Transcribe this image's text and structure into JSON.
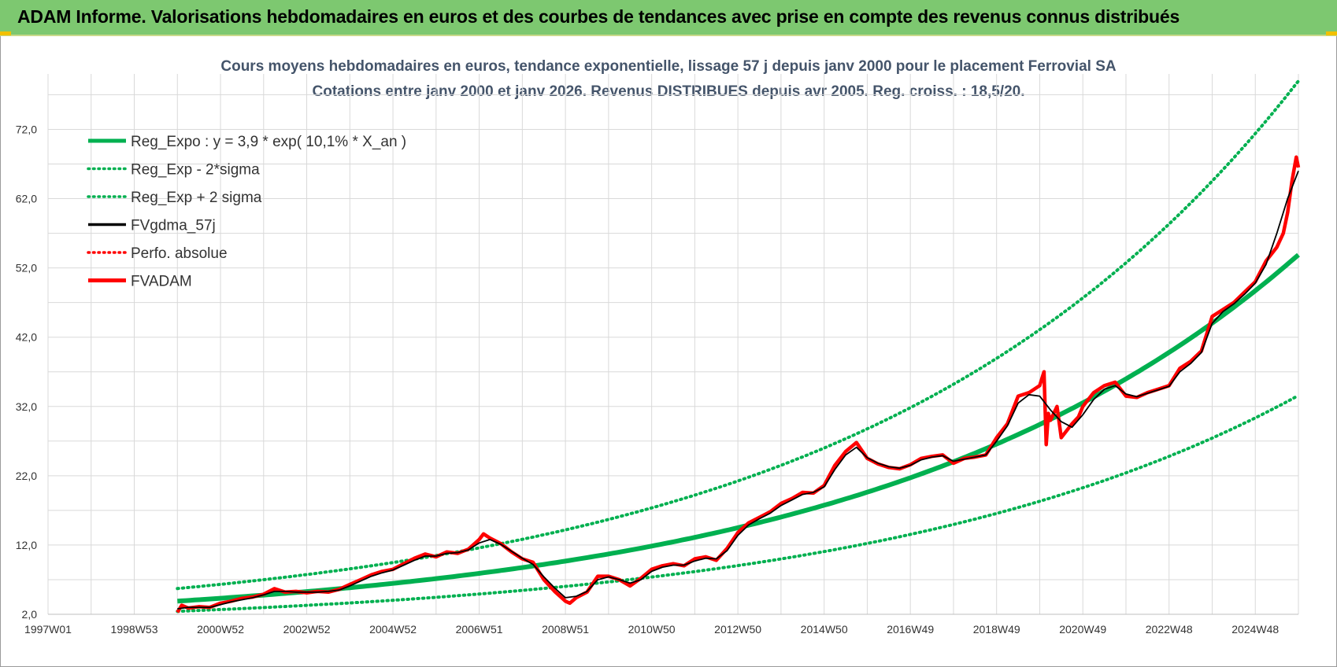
{
  "header": {
    "title": "ADAM Informe. Valorisations hebdomadaires en euros et des courbes de tendances avec prise en compte des revenus connus distribués"
  },
  "colors": {
    "header_bg": "#7dc870",
    "reg_expo": "#00b050",
    "fvgdma": "#000000",
    "perfo": "#ff0000",
    "fvadam": "#ff0000",
    "grid": "#d9d9d9"
  },
  "chart_data": {
    "type": "line",
    "title": "Cours moyens hebdomadaires en euros, tendance exponentielle, lissage 57 j depuis janv 2000  pour le placement Ferrovial SA",
    "subtitle": "Cotations entre janv 2000 et janv 2026. Revenus DISTRIBUES depuis avr 2005.  Reg. croiss. : 18,5/20.",
    "ylim": [
      2,
      80
    ],
    "xlim": [
      1997.0,
      2026.0
    ],
    "y_ticks": [
      "2,0",
      "12,0",
      "22,0",
      "32,0",
      "42,0",
      "52,0",
      "62,0",
      "72,0"
    ],
    "y_tick_values": [
      2,
      12,
      22,
      32,
      42,
      52,
      62,
      72
    ],
    "x_ticks": [
      "1997W01",
      "1998W53",
      "2000W52",
      "2002W52",
      "2004W52",
      "2006W51",
      "2008W51",
      "2010W50",
      "2012W50",
      "2014W50",
      "2016W49",
      "2018W49",
      "2020W49",
      "2022W48",
      "2024W48"
    ],
    "x_tick_values": [
      1997.0,
      1999.0,
      2001.0,
      2003.0,
      2005.0,
      2007.0,
      2009.0,
      2011.0,
      2013.0,
      2015.0,
      2017.0,
      2019.0,
      2021.0,
      2023.0,
      2025.0
    ],
    "grid": true,
    "legend_position": "top-left",
    "legend": [
      {
        "label": "Reg_Expo : y = 3,9 * exp( 10,1% *  X_an )",
        "color": "#00b050",
        "style": "solid-thick"
      },
      {
        "label": "Reg_Exp - 2*sigma",
        "color": "#00b050",
        "style": "dotted"
      },
      {
        "label": "Reg_Exp + 2 sigma",
        "color": "#00b050",
        "style": "dotted"
      },
      {
        "label": "FVgdma_57j",
        "color": "#000000",
        "style": "solid"
      },
      {
        "label": "Perfo. absolue",
        "color": "#ff0000",
        "style": "dotted"
      },
      {
        "label": "FVADAM",
        "color": "#ff0000",
        "style": "solid-thick"
      }
    ],
    "regression": {
      "a": 3.9,
      "rate": 0.101,
      "x_start": 2000.0,
      "x_end": 2026.0,
      "sigma_factor_upper": 1.4656,
      "sigma_factor_lower": 0.6231,
      "upper_cap": 80
    },
    "series": [
      {
        "name": "FVADAM",
        "x": [
          2000.0,
          2000.1,
          2000.25,
          2000.5,
          2000.75,
          2001.0,
          2001.25,
          2001.5,
          2001.75,
          2002.0,
          2002.25,
          2002.5,
          2002.75,
          2003.0,
          2003.25,
          2003.5,
          2003.75,
          2004.0,
          2004.25,
          2004.5,
          2004.75,
          2005.0,
          2005.25,
          2005.5,
          2005.75,
          2006.0,
          2006.25,
          2006.5,
          2006.75,
          2007.0,
          2007.1,
          2007.25,
          2007.5,
          2007.75,
          2008.0,
          2008.25,
          2008.5,
          2008.75,
          2009.0,
          2009.1,
          2009.25,
          2009.5,
          2009.75,
          2010.0,
          2010.25,
          2010.5,
          2010.75,
          2011.0,
          2011.25,
          2011.5,
          2011.75,
          2012.0,
          2012.25,
          2012.5,
          2012.75,
          2013.0,
          2013.25,
          2013.5,
          2013.75,
          2014.0,
          2014.25,
          2014.5,
          2014.75,
          2015.0,
          2015.25,
          2015.5,
          2015.75,
          2016.0,
          2016.25,
          2016.5,
          2016.75,
          2017.0,
          2017.25,
          2017.5,
          2017.75,
          2018.0,
          2018.25,
          2018.5,
          2018.75,
          2019.0,
          2019.25,
          2019.5,
          2019.75,
          2020.0,
          2020.1,
          2020.15,
          2020.2,
          2020.25,
          2020.4,
          2020.5,
          2020.75,
          2020.9,
          2021.0,
          2021.25,
          2021.5,
          2021.75,
          2022.0,
          2022.25,
          2022.5,
          2022.75,
          2023.0,
          2023.25,
          2023.5,
          2023.75,
          2024.0,
          2024.25,
          2024.5,
          2024.75,
          2025.0,
          2025.25,
          2025.5,
          2025.65,
          2025.75,
          2025.85,
          2025.95,
          2026.0
        ],
        "values": [
          2.3,
          3.3,
          2.9,
          3.1,
          3.0,
          3.6,
          3.9,
          4.3,
          4.5,
          4.9,
          5.7,
          5.2,
          5.3,
          5.1,
          5.3,
          5.2,
          5.6,
          6.3,
          7.0,
          7.7,
          8.2,
          8.5,
          9.3,
          10.1,
          10.7,
          10.3,
          11.0,
          10.8,
          11.4,
          12.8,
          13.6,
          13.0,
          12.2,
          11.0,
          10.0,
          9.5,
          7.0,
          5.3,
          3.9,
          3.6,
          4.4,
          5.2,
          7.5,
          7.5,
          7.0,
          6.1,
          7.2,
          8.5,
          9.0,
          9.3,
          9.0,
          10.0,
          10.3,
          9.8,
          11.5,
          13.8,
          15.2,
          16.0,
          16.8,
          18.0,
          18.7,
          19.6,
          19.5,
          20.6,
          23.5,
          25.5,
          26.8,
          24.5,
          23.7,
          23.2,
          23.0,
          23.6,
          24.5,
          24.8,
          25.0,
          23.8,
          24.5,
          24.7,
          25.0,
          27.5,
          29.5,
          33.5,
          34.0,
          35.0,
          37.0,
          26.5,
          31.0,
          30.0,
          32.0,
          27.5,
          29.5,
          30.5,
          32.0,
          34.0,
          35.0,
          35.5,
          33.5,
          33.3,
          34.0,
          34.5,
          35.0,
          37.5,
          38.5,
          40.0,
          45.0,
          46.0,
          47.0,
          48.5,
          50.0,
          53.0,
          55.0,
          57.0,
          60.0,
          64.5,
          68.0,
          66.5
        ]
      },
      {
        "name": "FVgdma_57j",
        "x": [
          2000.0,
          2000.25,
          2000.5,
          2000.75,
          2001.0,
          2001.25,
          2001.5,
          2001.75,
          2002.0,
          2002.25,
          2002.5,
          2002.75,
          2003.0,
          2003.25,
          2003.5,
          2003.75,
          2004.0,
          2004.25,
          2004.5,
          2004.75,
          2005.0,
          2005.25,
          2005.5,
          2005.75,
          2006.0,
          2006.25,
          2006.5,
          2006.75,
          2007.0,
          2007.25,
          2007.5,
          2007.75,
          2008.0,
          2008.25,
          2008.5,
          2008.75,
          2009.0,
          2009.25,
          2009.5,
          2009.75,
          2010.0,
          2010.25,
          2010.5,
          2010.75,
          2011.0,
          2011.25,
          2011.5,
          2011.75,
          2012.0,
          2012.25,
          2012.5,
          2012.75,
          2013.0,
          2013.25,
          2013.5,
          2013.75,
          2014.0,
          2014.25,
          2014.5,
          2014.75,
          2015.0,
          2015.25,
          2015.5,
          2015.75,
          2016.0,
          2016.25,
          2016.5,
          2016.75,
          2017.0,
          2017.25,
          2017.5,
          2017.75,
          2018.0,
          2018.25,
          2018.5,
          2018.75,
          2019.0,
          2019.25,
          2019.5,
          2019.75,
          2020.0,
          2020.25,
          2020.5,
          2020.75,
          2021.0,
          2021.25,
          2021.5,
          2021.75,
          2022.0,
          2022.25,
          2022.5,
          2022.75,
          2023.0,
          2023.25,
          2023.5,
          2023.75,
          2024.0,
          2024.25,
          2024.5,
          2024.75,
          2025.0,
          2025.25,
          2025.5,
          2025.75,
          2026.0
        ],
        "values": [
          2.8,
          3.0,
          3.0,
          3.0,
          3.4,
          3.8,
          4.1,
          4.4,
          4.8,
          5.3,
          5.3,
          5.2,
          5.2,
          5.2,
          5.3,
          5.5,
          6.1,
          6.8,
          7.5,
          8.0,
          8.4,
          9.1,
          9.8,
          10.4,
          10.4,
          10.8,
          10.9,
          11.3,
          12.3,
          12.8,
          12.1,
          11.1,
          10.1,
          9.2,
          7.4,
          5.8,
          4.4,
          4.6,
          5.3,
          7.0,
          7.4,
          7.0,
          6.5,
          7.0,
          8.2,
          8.8,
          9.1,
          9.1,
          9.7,
          10.1,
          10.0,
          11.2,
          13.4,
          14.9,
          15.8,
          16.6,
          17.7,
          18.5,
          19.3,
          19.6,
          20.4,
          22.9,
          25.0,
          26.1,
          24.6,
          23.8,
          23.3,
          23.1,
          23.5,
          24.3,
          24.7,
          24.9,
          24.1,
          24.4,
          24.7,
          25.0,
          27.0,
          29.2,
          32.5,
          33.7,
          33.5,
          31.5,
          29.8,
          29.0,
          30.8,
          33.0,
          34.5,
          35.0,
          33.8,
          33.4,
          33.9,
          34.4,
          34.9,
          37.0,
          38.2,
          39.8,
          44.0,
          45.7,
          46.8,
          48.2,
          49.8,
          52.5,
          57.0,
          62.0,
          66.0
        ]
      }
    ]
  }
}
